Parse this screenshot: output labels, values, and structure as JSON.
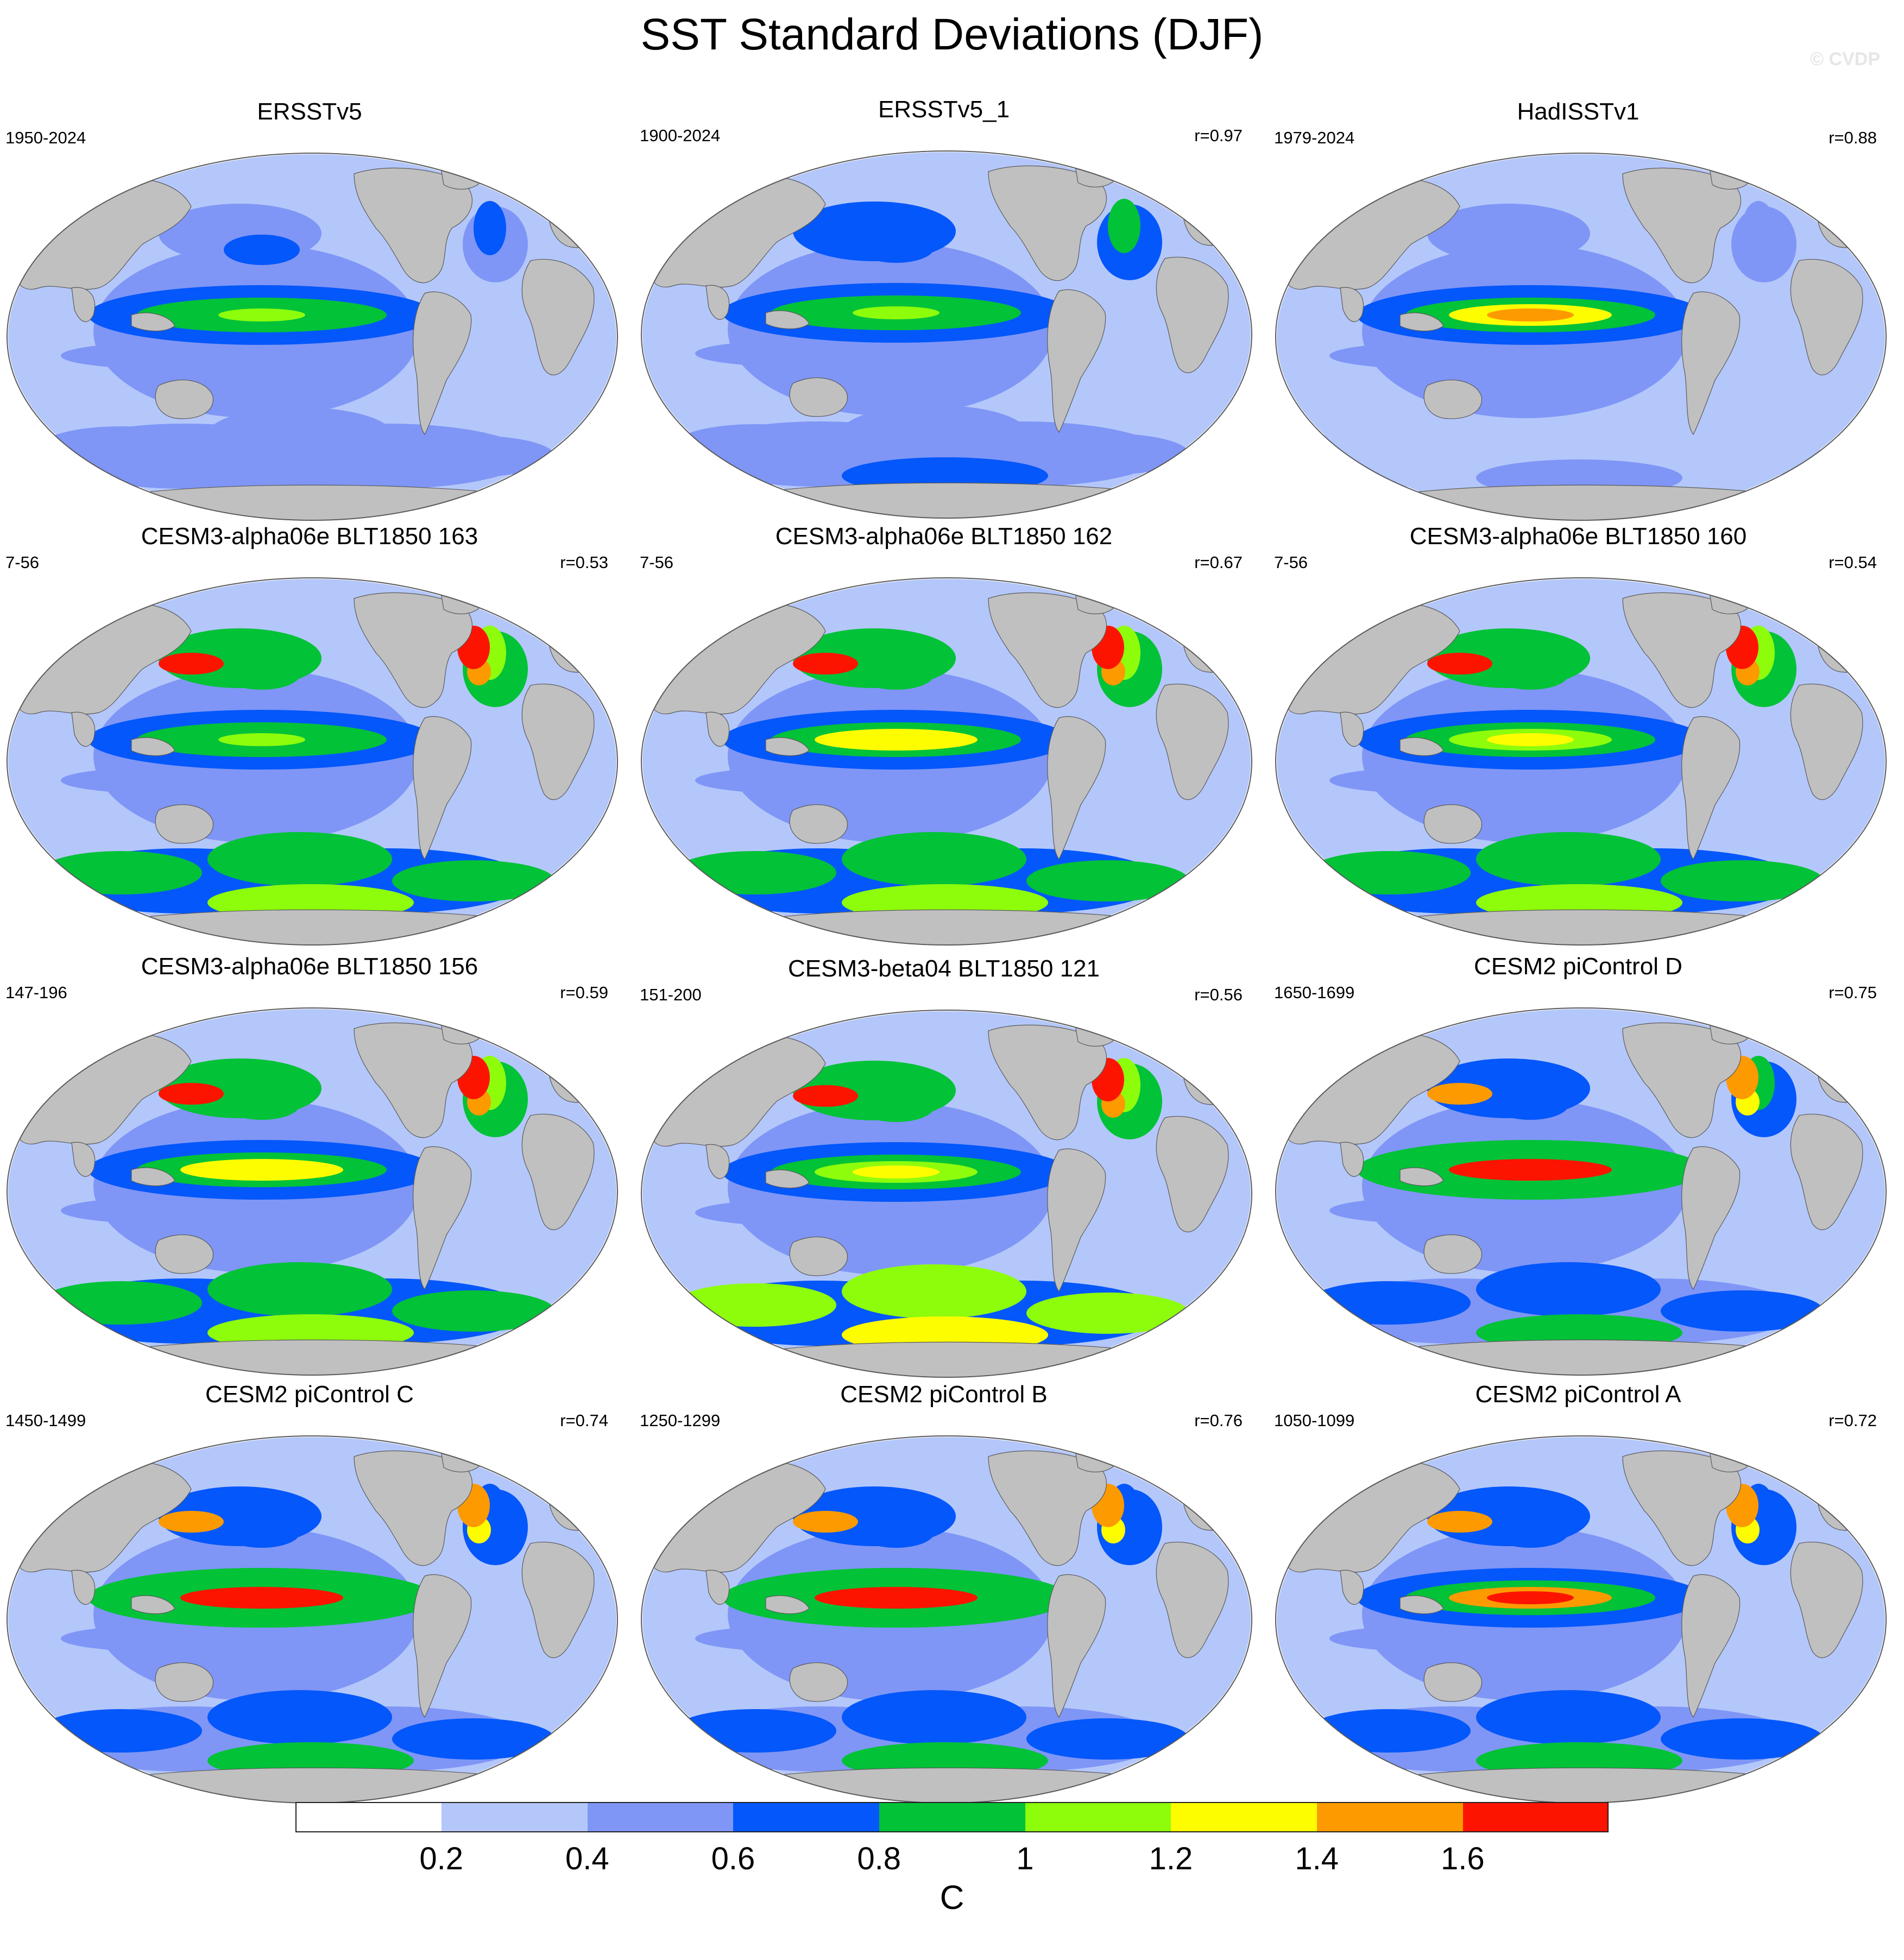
{
  "title": "SST Standard Deviations (DJF)",
  "watermark": "© CVDP",
  "panels": [
    {
      "title": "ERSSTv5",
      "period": "1950-2024",
      "r": "",
      "profile": {
        "enso": 0.95,
        "south": 0.5,
        "north": 0.6,
        "extreme": 0.0
      }
    },
    {
      "title": "ERSSTv5_1",
      "period": "1900-2024",
      "r": "r=0.97",
      "profile": {
        "enso": 0.95,
        "south": 0.65,
        "north": 0.8,
        "extreme": 0.0
      }
    },
    {
      "title": "HadISSTv1",
      "period": "1979-2024",
      "r": "r=0.88",
      "profile": {
        "enso": 1.25,
        "south": 0.4,
        "north": 0.5,
        "extreme": 0.0
      }
    },
    {
      "title": "CESM3-alpha06e BLT1850 163",
      "period": "7-56",
      "r": "r=0.53",
      "profile": {
        "enso": 0.95,
        "south": 1.1,
        "north": 1.0,
        "extreme": 1.7
      }
    },
    {
      "title": "CESM3-alpha06e BLT1850 162",
      "period": "7-56",
      "r": "r=0.67",
      "profile": {
        "enso": 1.2,
        "south": 1.1,
        "north": 1.0,
        "extreme": 1.7
      }
    },
    {
      "title": "CESM3-alpha06e BLT1850 160",
      "period": "7-56",
      "r": "r=0.54",
      "profile": {
        "enso": 1.05,
        "south": 1.1,
        "north": 1.0,
        "extreme": 1.7
      }
    },
    {
      "title": "CESM3-alpha06e BLT1850 156",
      "period": "147-196",
      "r": "r=0.59",
      "profile": {
        "enso": 1.2,
        "south": 1.1,
        "north": 1.0,
        "extreme": 1.7
      }
    },
    {
      "title": "CESM3-beta04 BLT1850 121",
      "period": "151-200",
      "r": "r=0.56",
      "profile": {
        "enso": 1.05,
        "south": 1.2,
        "north": 1.0,
        "extreme": 1.7
      }
    },
    {
      "title": "CESM2 piControl D",
      "period": "1650-1699",
      "r": "r=0.75",
      "profile": {
        "enso": 1.65,
        "south": 0.85,
        "north": 0.75,
        "extreme": 1.5
      }
    },
    {
      "title": "CESM2 piControl C",
      "period": "1450-1499",
      "r": "r=0.74",
      "profile": {
        "enso": 1.7,
        "south": 0.85,
        "north": 0.7,
        "extreme": 1.5
      }
    },
    {
      "title": "CESM2 piControl B",
      "period": "1250-1299",
      "r": "r=0.76",
      "profile": {
        "enso": 1.65,
        "south": 0.85,
        "north": 0.7,
        "extreme": 1.5
      }
    },
    {
      "title": "CESM2 piControl A",
      "period": "1050-1099",
      "r": "r=0.72",
      "profile": {
        "enso": 1.5,
        "south": 0.85,
        "north": 0.7,
        "extreme": 1.5
      }
    }
  ],
  "colorbar": {
    "colors": [
      "#ffffff",
      "#b4c7fb",
      "#7f96f6",
      "#0457fa",
      "#02c238",
      "#8dfd0c",
      "#fdfd00",
      "#fd9a00",
      "#fd1400"
    ],
    "ticks": [
      "0.2",
      "0.4",
      "0.6",
      "0.8",
      "1",
      "1.2",
      "1.4",
      "1.6"
    ],
    "levels": [
      0.2,
      0.4,
      0.6,
      0.8,
      1.0,
      1.2,
      1.4,
      1.6
    ],
    "unit": "C"
  },
  "colors": {
    "land": "#c0c0c0",
    "outline": "#5a5a5a"
  }
}
